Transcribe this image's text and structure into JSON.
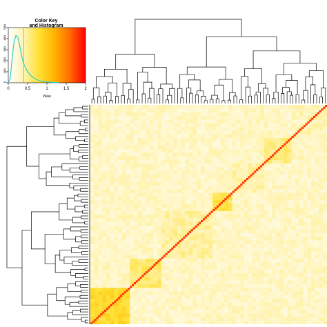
{
  "chart_data": {
    "type": "heatmap",
    "subtype": "clustered correlation heatmap with row and column dendrograms",
    "color_key": {
      "title": "Color Key\nand Histogram",
      "xlabel": "Value",
      "ylabel": "Count",
      "x_ticks": [
        "0",
        "0.5",
        "1",
        "1.5",
        "2"
      ],
      "y_ticks": [
        "0",
        "100",
        "200",
        "300",
        "400",
        "500"
      ],
      "xlim": [
        0,
        2
      ],
      "ylim": [
        0,
        500
      ],
      "palette": [
        "#ffffff",
        "#fff3b0",
        "#ffe033",
        "#ffb300",
        "#ff6a00",
        "#ff0000"
      ],
      "histogram": {
        "x": [
          0.05,
          0.1,
          0.15,
          0.2,
          0.25,
          0.3,
          0.35,
          0.4,
          0.5,
          0.6,
          0.7,
          0.8,
          0.9,
          1.0,
          1.1,
          1.2,
          1.3
        ],
        "counts": [
          40,
          220,
          370,
          430,
          410,
          330,
          240,
          170,
          100,
          60,
          35,
          20,
          12,
          8,
          5,
          3,
          1
        ]
      },
      "histogram_color": "#2ad4cc"
    },
    "heatmap": {
      "n": 120,
      "diagonal_value": 2.0,
      "background_value": 0.3,
      "clusters": [
        {
          "start": 0.0,
          "end": 0.17,
          "value": 0.85
        },
        {
          "start": 0.17,
          "end": 0.3,
          "value": 0.6
        },
        {
          "start": 0.3,
          "end": 0.52,
          "value": 0.45
        },
        {
          "start": 0.52,
          "end": 0.6,
          "value": 0.7
        },
        {
          "start": 0.6,
          "end": 0.73,
          "value": 0.4
        },
        {
          "start": 0.73,
          "end": 0.84,
          "value": 0.55
        },
        {
          "start": 0.84,
          "end": 1.0,
          "value": 0.35
        }
      ],
      "diagonal_direction": "bottom-left to top-right",
      "highlight_color": "#ff3300"
    },
    "dendrogram_color": "#000000"
  }
}
